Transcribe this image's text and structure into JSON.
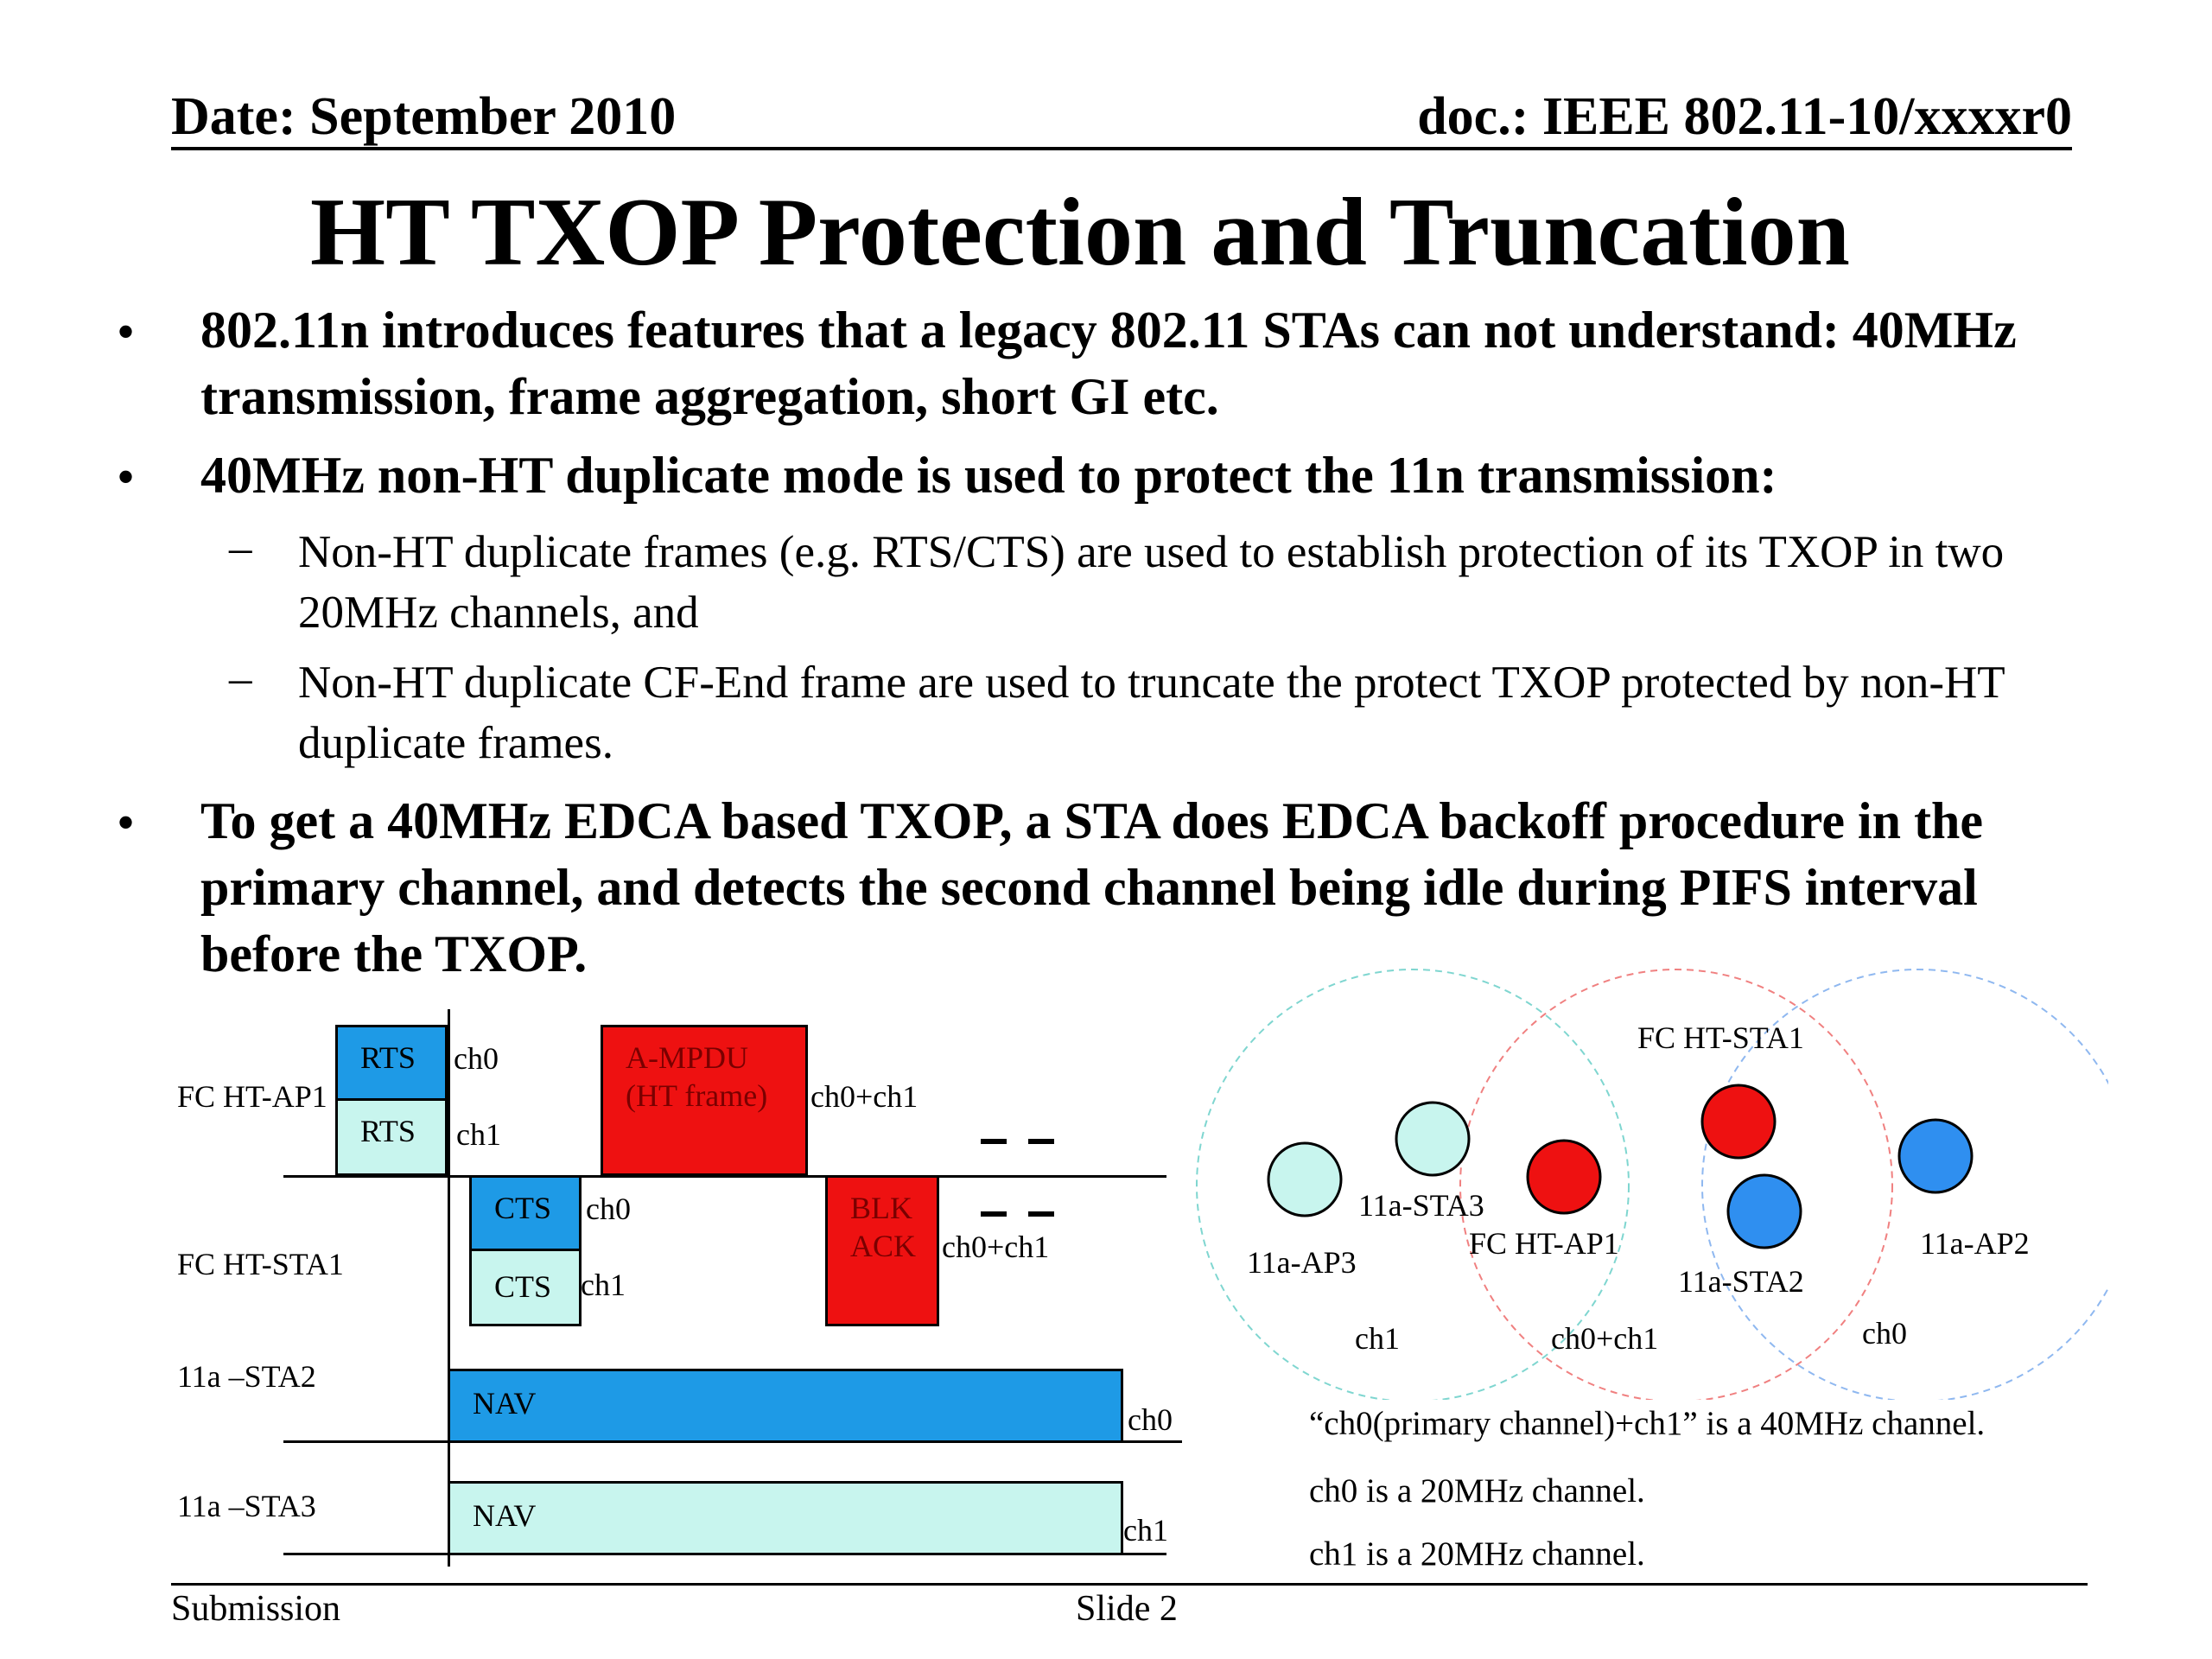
{
  "header": {
    "date": "Date: September 2010",
    "doc": "doc.: IEEE 802.11-10/xxxxr0"
  },
  "title": "HT TXOP Protection and Truncation",
  "bullets": {
    "b1": "802.11n introduces features that a legacy 802.11 STAs can not understand: 40MHz transmission, frame aggregation, short GI etc.",
    "b2": "40MHz non-HT duplicate mode is used to protect the 11n transmission:",
    "b2_sub1": "Non-HT duplicate frames (e.g. RTS/CTS) are used to establish protection of its TXOP in two 20MHz channels, and",
    "b2_sub2": "Non-HT duplicate CF-End frame are used to truncate the protect TXOP protected by non-HT duplicate frames.",
    "b3": "To get a 40MHz EDCA based TXOP, a STA does EDCA backoff procedure in the primary channel, and detects the second channel being idle during PIFS interval before the TXOP.",
    "bullet_char": "•",
    "dash_char": "–"
  },
  "timing": {
    "rows": {
      "ap1": "FC HT-AP1",
      "sta1": "FC HT-STA1",
      "sta2": "11a –STA2",
      "sta3": "11a –STA3"
    },
    "frames": {
      "rts0": "RTS",
      "rts1": "RTS",
      "cts0": "CTS",
      "cts1": "CTS",
      "ampdu1": "A-MPDU",
      "ampdu2": "(HT frame)",
      "blk1": "BLK",
      "blk2": "ACK",
      "nav2": "NAV",
      "nav3": "NAV"
    },
    "channels": {
      "rts0": "ch0",
      "rts1": "ch1",
      "cts0": "ch0",
      "cts1": "ch1",
      "ampdu": "ch0+ch1",
      "blk": "ch0+ch1",
      "nav2": "ch0",
      "nav3": "ch1"
    }
  },
  "topology": {
    "sta1": "FC HT-STA1",
    "sta3": "11a-STA3",
    "ap1": "FC HT-AP1",
    "ap3": "11a-AP3",
    "sta2": "11a-STA2",
    "ap2": "11a-AP2",
    "ch1": "ch1",
    "ch01": "ch0+ch1",
    "ch0": "ch0"
  },
  "notes": {
    "n1": "“ch0(primary channel)+ch1” is a 40MHz channel.",
    "n2": "ch0 is a 20MHz channel.",
    "n3": "ch1 is a 20MHz channel."
  },
  "footer": {
    "left": "Submission",
    "center": "Slide 2"
  },
  "colors": {
    "blue": "#1e9ae6",
    "cyan": "#c8f5ee",
    "red": "#ee1111",
    "node_blue": "#2f8ff0"
  }
}
